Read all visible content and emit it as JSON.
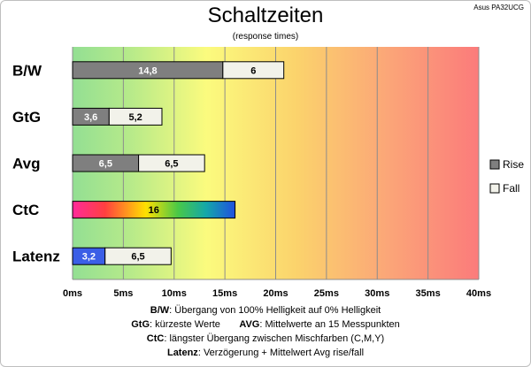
{
  "model": "Asus PA32UCG",
  "chart_data": {
    "type": "bar",
    "orientation": "horizontal",
    "stacked": true,
    "title": "Schaltzeiten",
    "subtitle": "(response times)",
    "categories": [
      "B/W",
      "GtG",
      "Avg",
      "CtC",
      "Latenz"
    ],
    "series": [
      {
        "name": "Rise",
        "values": [
          14.8,
          3.6,
          6.5,
          null,
          3.2
        ],
        "labels": [
          "14,8",
          "3,6",
          "6,5",
          "",
          "3,2"
        ]
      },
      {
        "name": "Fall",
        "values": [
          6,
          5.2,
          6.5,
          null,
          6.5
        ],
        "labels": [
          "6",
          "5,2",
          "6,5",
          "",
          "6,5"
        ]
      }
    ],
    "single_values": {
      "CtC": {
        "value": 16,
        "label": "16"
      }
    },
    "xlim": [
      0,
      40
    ],
    "xticks": [
      0,
      5,
      10,
      15,
      20,
      25,
      30,
      35,
      40
    ],
    "xtick_labels": [
      "0ms",
      "5ms",
      "10ms",
      "15ms",
      "20ms",
      "25ms",
      "30ms",
      "35ms",
      "40ms"
    ],
    "grid": true,
    "legend_position": "right",
    "background": "gradient green-yellow-red",
    "colors": {
      "rise": "#7f7f7f",
      "fall": "#f2f2ea",
      "latenz_rise": "#3b5ee6"
    }
  },
  "notes": [
    {
      "key": "B/W",
      "text": "Übergang von 100% Helligkeit auf 0% Helligkeit"
    },
    {
      "key": "GtG",
      "text": "kürzeste  Werte",
      "key2": "AVG",
      "text2": "Mittelwerte  an 15 Messpunkten"
    },
    {
      "key": "CtC",
      "text": "längster Übergang  zwischen Mischfarben (C,M,Y)"
    },
    {
      "key": "Latenz",
      "text": "Verzögerung  + Mittelwert Avg rise/fall"
    }
  ]
}
